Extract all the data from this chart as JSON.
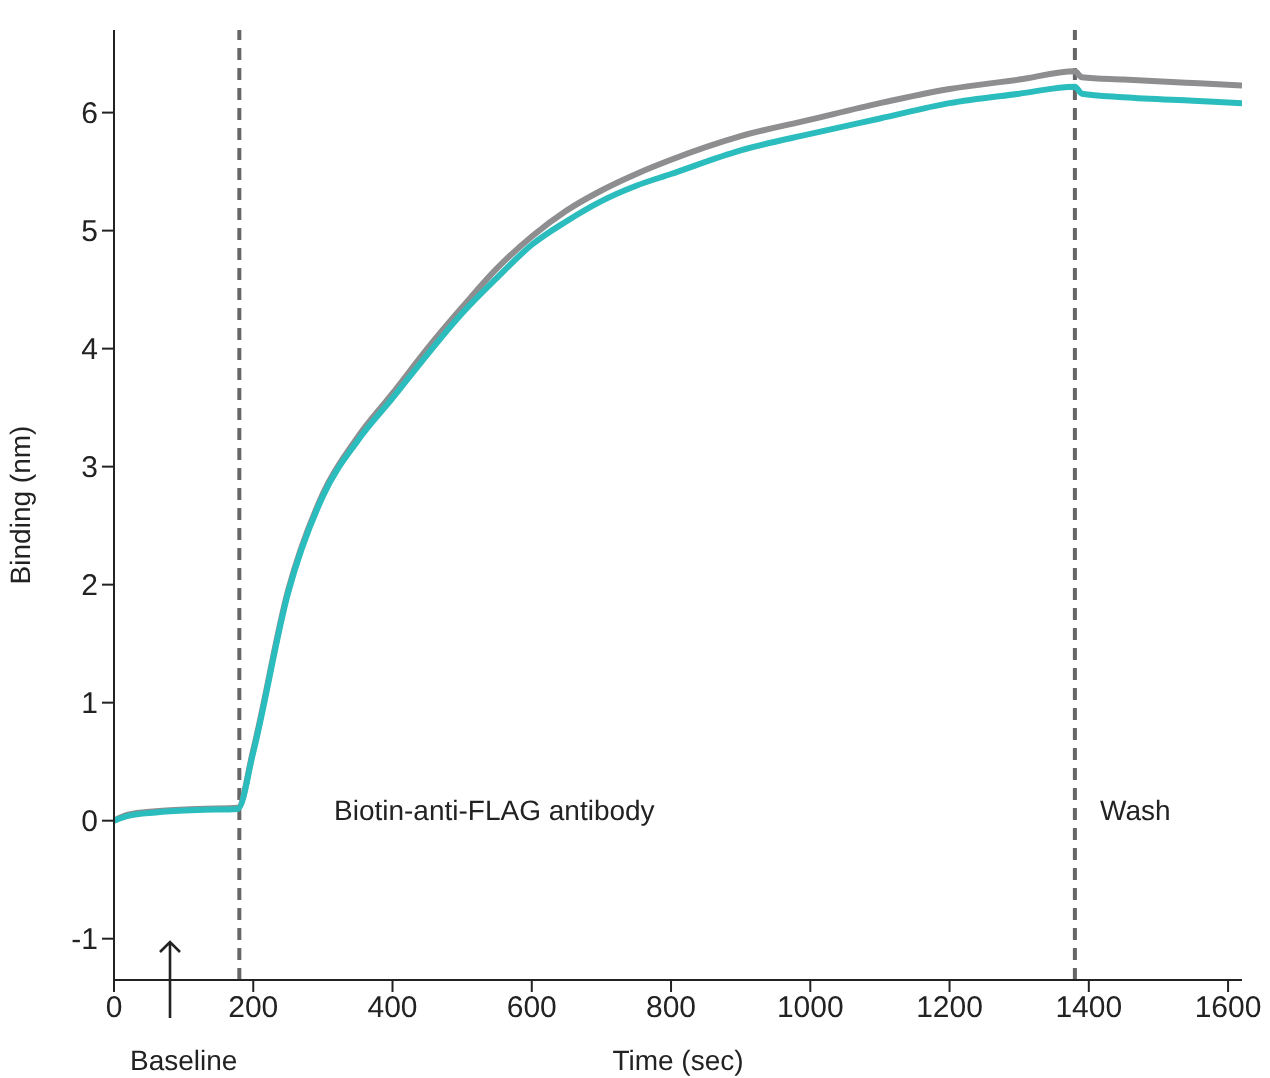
{
  "chart_data": {
    "type": "line",
    "xlabel": "Time (sec)",
    "ylabel": "Binding (nm)",
    "x": [
      0,
      20,
      60,
      120,
      178,
      200,
      250,
      300,
      350,
      400,
      450,
      500,
      550,
      600,
      650,
      700,
      750,
      800,
      900,
      1000,
      1100,
      1200,
      1300,
      1380,
      1390,
      1450,
      1550,
      1620
    ],
    "series": [
      {
        "color": "#8e8e90",
        "values": [
          0,
          0.05,
          0.08,
          0.1,
          0.11,
          0.6,
          1.95,
          2.77,
          3.25,
          3.62,
          4.0,
          4.35,
          4.68,
          4.95,
          5.17,
          5.34,
          5.48,
          5.6,
          5.8,
          5.94,
          6.08,
          6.2,
          6.28,
          6.35,
          6.3,
          6.28,
          6.25,
          6.23
        ]
      },
      {
        "color": "#2bbdbd",
        "values": [
          0,
          0.04,
          0.07,
          0.09,
          0.1,
          0.58,
          1.93,
          2.75,
          3.22,
          3.58,
          3.95,
          4.3,
          4.6,
          4.88,
          5.08,
          5.25,
          5.38,
          5.48,
          5.68,
          5.82,
          5.95,
          6.08,
          6.16,
          6.22,
          6.16,
          6.13,
          6.1,
          6.08
        ]
      }
    ],
    "xlim": [
      0,
      1620
    ],
    "xticks": [
      0,
      200,
      400,
      600,
      800,
      1000,
      1200,
      1400,
      1600
    ],
    "ylim": [
      -1.35,
      6.7
    ],
    "yticks": [
      -1,
      0,
      1,
      2,
      3,
      4,
      5,
      6
    ],
    "ref_lines": [
      {
        "axis": "x",
        "value": 180,
        "color": "#666666",
        "line_style": "dashed"
      },
      {
        "axis": "x",
        "value": 1380,
        "color": "#666666",
        "line_style": "dashed"
      }
    ],
    "annotations": [
      "Biotin-anti-FLAG antibody",
      "Wash",
      "Baseline"
    ],
    "grid": false,
    "marker": "none",
    "line_style": "solid"
  }
}
